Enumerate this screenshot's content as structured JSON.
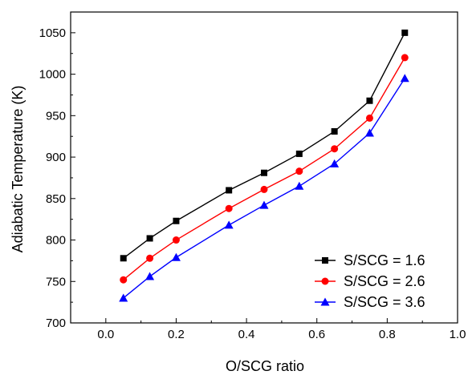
{
  "chart_data": {
    "type": "line",
    "title": "",
    "xlabel": "O/SCG ratio",
    "ylabel": "Adiabatic Temperature (K)",
    "xlim": [
      -0.1,
      1.0
    ],
    "ylim": [
      700,
      1075
    ],
    "xticks": [
      0.0,
      0.2,
      0.4,
      0.6,
      0.8,
      1.0
    ],
    "xtick_labels": [
      "0.0",
      "0.2",
      "0.4",
      "0.6",
      "0.8",
      "1.0"
    ],
    "yticks": [
      700,
      750,
      800,
      850,
      900,
      950,
      1000,
      1050
    ],
    "ytick_labels": [
      "700",
      "750",
      "800",
      "850",
      "900",
      "950",
      "1000",
      "1050"
    ],
    "grid": false,
    "legend_position": "bottom-right",
    "x": [
      0.05,
      0.125,
      0.2,
      0.35,
      0.45,
      0.55,
      0.65,
      0.75,
      0.85
    ],
    "series": [
      {
        "name": "S/SCG = 1.6",
        "color": "#000000",
        "marker": "square",
        "values": [
          778,
          802,
          823,
          860,
          881,
          904,
          931,
          968,
          1050
        ]
      },
      {
        "name": "S/SCG = 2.6",
        "color": "#ff0000",
        "marker": "circle",
        "values": [
          752,
          778,
          800,
          838,
          861,
          883,
          910,
          947,
          1020
        ]
      },
      {
        "name": "S/SCG = 3.6",
        "color": "#0000ff",
        "marker": "triangle",
        "values": [
          730,
          756,
          779,
          818,
          842,
          865,
          892,
          929,
          995
        ]
      }
    ]
  }
}
